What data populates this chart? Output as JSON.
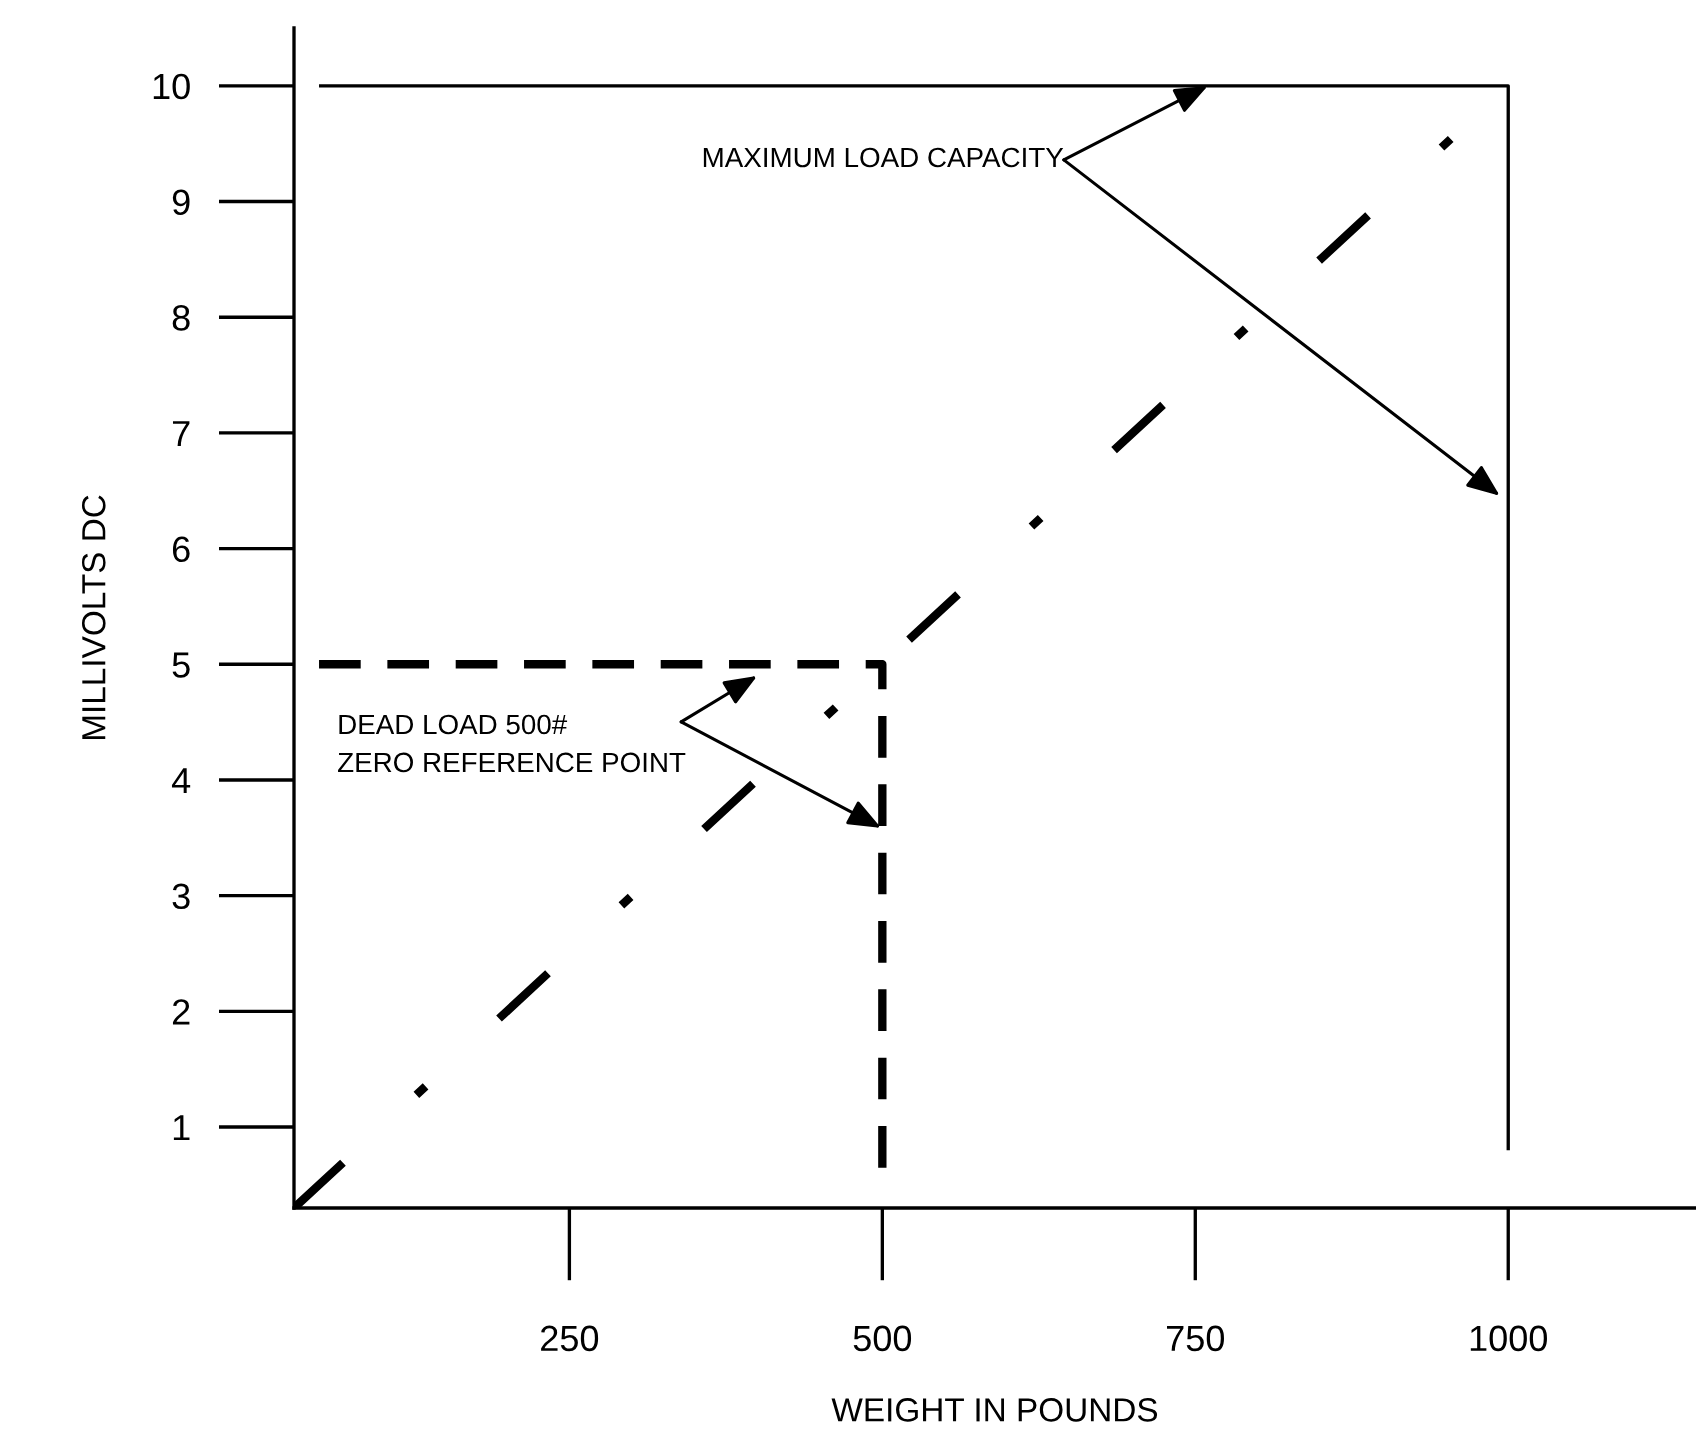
{
  "chart_data": {
    "type": "line",
    "xlabel": "WEIGHT IN POUNDS",
    "ylabel": "MILLIVOLTS DC",
    "xlim": [
      30,
      1150
    ],
    "ylim": [
      0.3,
      10.5
    ],
    "xticks": [
      250,
      500,
      750,
      1000
    ],
    "yticks": [
      1,
      2,
      3,
      4,
      5,
      6,
      7,
      8,
      9,
      10
    ],
    "grid": false,
    "marker": "none",
    "series": [
      {
        "x": [
          30,
          1000
        ],
        "values": [
          0.3,
          10
        ],
        "color": "#000000",
        "line_style": "dashdot"
      },
      {
        "x": [
          50,
          1000,
          1000
        ],
        "values": [
          10,
          10,
          0.8
        ],
        "color": "#000000",
        "line_style": "solid"
      },
      {
        "x": [
          50,
          500,
          500
        ],
        "values": [
          5,
          5,
          0.6
        ],
        "color": "#000000",
        "line_style": "dashed"
      }
    ],
    "annotations": [
      {
        "text": "MAXIMUM LOAD CAPACITY",
        "x": 760,
        "y": 10
      },
      {
        "text": "DEAD LOAD 500#\nZERO REFERENCE POINT",
        "x": 400,
        "y": 4.9
      }
    ]
  }
}
